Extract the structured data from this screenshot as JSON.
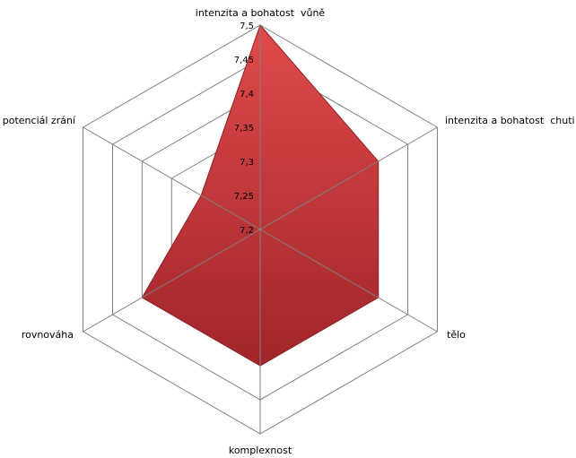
{
  "chart_data": {
    "type": "radar",
    "title": "",
    "categories": [
      "intenzita a bohatost  vůně",
      "intenzita a bohatost  chuti",
      "tělo",
      "komplexnost",
      "rovnováha",
      "potenciál zrání"
    ],
    "series": [
      {
        "values": [
          7.5,
          7.4,
          7.4,
          7.4,
          7.4,
          7.3
        ]
      }
    ],
    "rlim": [
      7.2,
      7.5
    ],
    "ticks": [
      "7,2",
      "7,25",
      "7,3",
      "7,35",
      "7,4",
      "7,45",
      "7,5"
    ],
    "grid": true,
    "legend": "none",
    "colors": {
      "fill": "#d23a3c",
      "fill_light": "#e04a4a",
      "fill_dark": "#a0252a",
      "stroke": "#8e2025",
      "grid": "#7f7f7f"
    }
  }
}
